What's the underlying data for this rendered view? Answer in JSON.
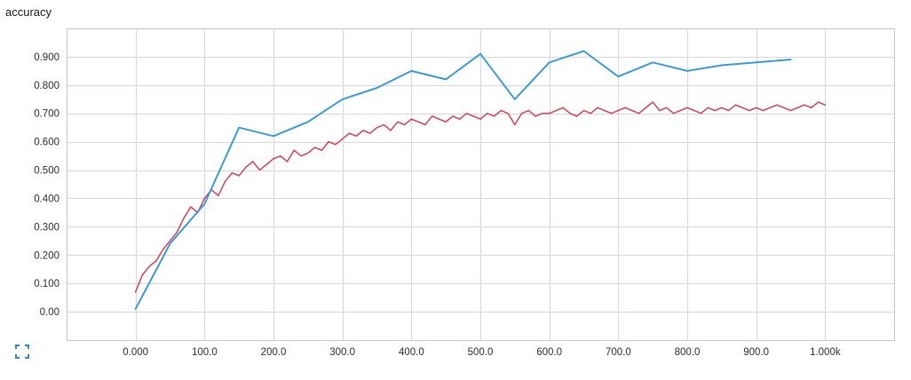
{
  "header": {
    "title": "accuracy"
  },
  "icons": {
    "expand": "fit-to-screen-icon"
  },
  "chart_data": {
    "type": "line",
    "title": "accuracy",
    "xlabel": "",
    "ylabel": "",
    "xlim": [
      -100,
      1100
    ],
    "ylim": [
      -0.1,
      1.0
    ],
    "x_ticks": [
      0,
      100,
      200,
      300,
      400,
      500,
      600,
      700,
      800,
      900,
      1000
    ],
    "x_tick_labels": [
      "0.000",
      "100.0",
      "200.0",
      "300.0",
      "400.0",
      "500.0",
      "600.0",
      "700.0",
      "800.0",
      "900.0",
      "1.000k"
    ],
    "y_ticks": [
      0.0,
      0.1,
      0.2,
      0.3,
      0.4,
      0.5,
      0.6,
      0.7,
      0.8,
      0.9
    ],
    "y_tick_labels": [
      "0.00",
      "0.100",
      "0.200",
      "0.300",
      "0.400",
      "0.500",
      "0.600",
      "0.700",
      "0.800",
      "0.900"
    ],
    "grid": true,
    "series": [
      {
        "color": "#3b9de1",
        "x": [
          0,
          50,
          100,
          150,
          200,
          250,
          300,
          350,
          400,
          450,
          500,
          550,
          600,
          650,
          700,
          750,
          800,
          850,
          900,
          950
        ],
        "y": [
          0.01,
          0.24,
          0.38,
          0.65,
          0.62,
          0.67,
          0.75,
          0.79,
          0.85,
          0.82,
          0.91,
          0.75,
          0.88,
          0.92,
          0.83,
          0.88,
          0.85,
          0.87,
          0.88,
          0.89
        ]
      },
      {
        "color": "#dd4b5f",
        "x": [
          0,
          10,
          20,
          30,
          40,
          50,
          60,
          70,
          80,
          90,
          100,
          110,
          120,
          130,
          140,
          150,
          160,
          170,
          180,
          190,
          200,
          210,
          220,
          230,
          240,
          250,
          260,
          270,
          280,
          290,
          300,
          310,
          320,
          330,
          340,
          350,
          360,
          370,
          380,
          390,
          400,
          410,
          420,
          430,
          440,
          450,
          460,
          470,
          480,
          490,
          500,
          510,
          520,
          530,
          540,
          550,
          560,
          570,
          580,
          590,
          600,
          610,
          620,
          630,
          640,
          650,
          660,
          670,
          680,
          690,
          700,
          710,
          720,
          730,
          740,
          750,
          760,
          770,
          780,
          790,
          800,
          810,
          820,
          830,
          840,
          850,
          860,
          870,
          880,
          890,
          900,
          910,
          920,
          930,
          940,
          950,
          960,
          970,
          980,
          990,
          1000
        ],
        "y": [
          0.07,
          0.13,
          0.16,
          0.18,
          0.22,
          0.25,
          0.28,
          0.33,
          0.37,
          0.35,
          0.4,
          0.43,
          0.41,
          0.46,
          0.49,
          0.48,
          0.51,
          0.53,
          0.5,
          0.52,
          0.54,
          0.55,
          0.53,
          0.57,
          0.55,
          0.56,
          0.58,
          0.57,
          0.6,
          0.59,
          0.61,
          0.63,
          0.62,
          0.64,
          0.63,
          0.65,
          0.66,
          0.64,
          0.67,
          0.66,
          0.68,
          0.67,
          0.66,
          0.69,
          0.68,
          0.67,
          0.69,
          0.68,
          0.7,
          0.69,
          0.68,
          0.7,
          0.69,
          0.71,
          0.7,
          0.66,
          0.7,
          0.71,
          0.69,
          0.7,
          0.7,
          0.71,
          0.72,
          0.7,
          0.69,
          0.71,
          0.7,
          0.72,
          0.71,
          0.7,
          0.71,
          0.72,
          0.71,
          0.7,
          0.72,
          0.74,
          0.71,
          0.72,
          0.7,
          0.71,
          0.72,
          0.71,
          0.7,
          0.72,
          0.71,
          0.72,
          0.71,
          0.73,
          0.72,
          0.71,
          0.72,
          0.71,
          0.72,
          0.73,
          0.72,
          0.71,
          0.72,
          0.73,
          0.72,
          0.74,
          0.73
        ]
      }
    ]
  }
}
